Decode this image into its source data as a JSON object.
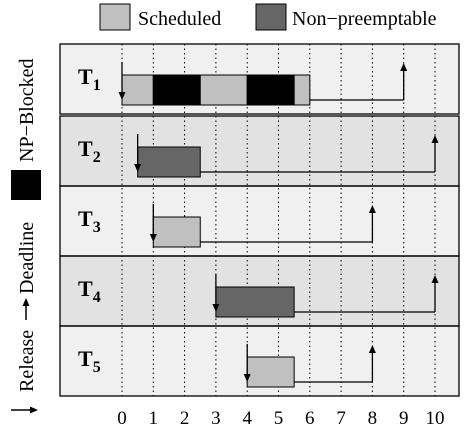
{
  "legend": {
    "items": [
      {
        "label": "Scheduled",
        "color": "#c0c0c0"
      },
      {
        "label": "Non−preemptable",
        "color": "#666666"
      }
    ]
  },
  "side_legend": {
    "np_blocked": {
      "label": "NP−Blocked",
      "color": "#000000"
    },
    "deadline": {
      "label": "Deadline"
    },
    "release": {
      "label": "Release"
    }
  },
  "x_axis": {
    "ticks": [
      "0",
      "1",
      "2",
      "3",
      "4",
      "5",
      "6",
      "7",
      "8",
      "9",
      "10"
    ],
    "range": [
      0,
      10
    ]
  },
  "colors": {
    "scheduled": "#c0c0c0",
    "nonpreemptable": "#666666",
    "blocked": "#000000",
    "row_light": "#f0f0f0",
    "row_dark": "#e2e2e2"
  },
  "tasks": [
    {
      "name": "T",
      "sub": "1",
      "release": 0,
      "deadline": 9,
      "segments": [
        {
          "start": 0,
          "end": 1,
          "kind": "scheduled"
        },
        {
          "start": 1,
          "end": 2.5,
          "kind": "blocked"
        },
        {
          "start": 2.5,
          "end": 4,
          "kind": "scheduled"
        },
        {
          "start": 4,
          "end": 5.5,
          "kind": "blocked"
        },
        {
          "start": 5.5,
          "end": 6,
          "kind": "scheduled"
        }
      ]
    },
    {
      "name": "T",
      "sub": "2",
      "release": 0.5,
      "deadline": 10,
      "segments": [
        {
          "start": 0.5,
          "end": 2.5,
          "kind": "nonpreemptable"
        }
      ]
    },
    {
      "name": "T",
      "sub": "3",
      "release": 1,
      "deadline": 8,
      "segments": [
        {
          "start": 1,
          "end": 2.5,
          "kind": "scheduled"
        }
      ]
    },
    {
      "name": "T",
      "sub": "4",
      "release": 3,
      "deadline": 10,
      "segments": [
        {
          "start": 3,
          "end": 5.5,
          "kind": "nonpreemptable"
        }
      ]
    },
    {
      "name": "T",
      "sub": "5",
      "release": 4,
      "deadline": 8,
      "segments": [
        {
          "start": 4,
          "end": 5.5,
          "kind": "scheduled"
        }
      ]
    }
  ]
}
